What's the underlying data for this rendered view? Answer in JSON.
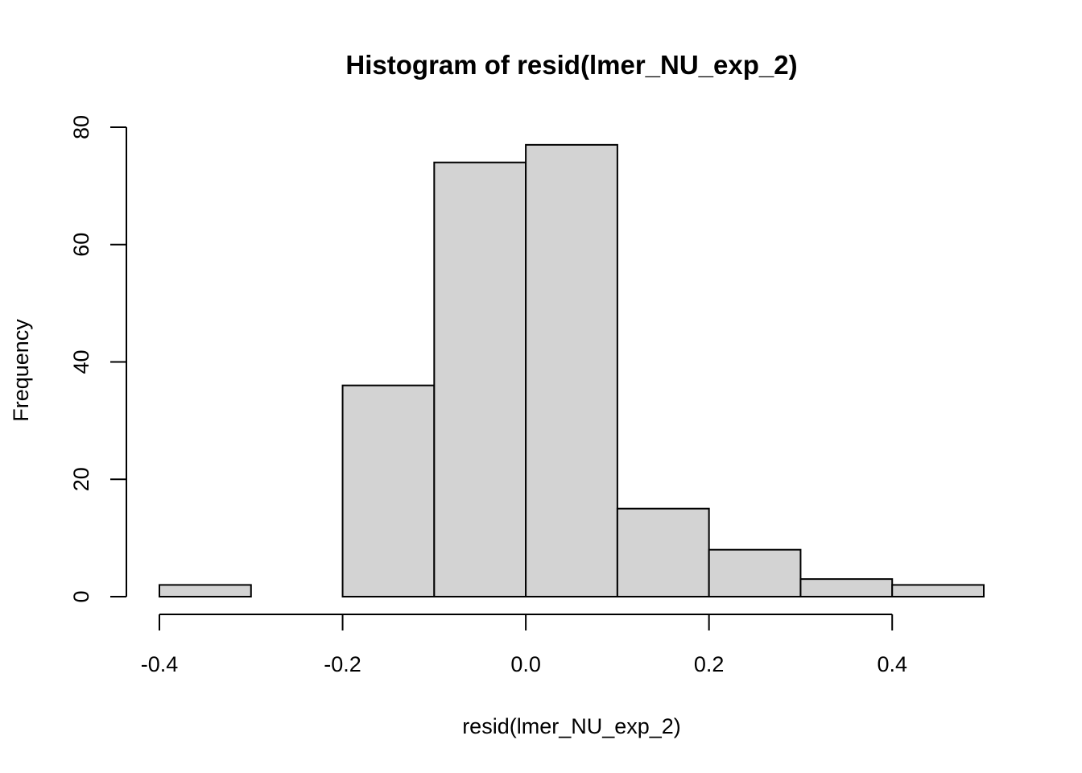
{
  "chart_data": {
    "type": "bar",
    "subtype": "histogram",
    "title": "Histogram of resid(lmer_NU_exp_2)",
    "xlabel": "resid(lmer_NU_exp_2)",
    "ylabel": "Frequency",
    "bins": [
      {
        "x0": -0.4,
        "x1": -0.3,
        "count": 2
      },
      {
        "x0": -0.3,
        "x1": -0.2,
        "count": 0
      },
      {
        "x0": -0.2,
        "x1": -0.1,
        "count": 36
      },
      {
        "x0": -0.1,
        "x1": 0.0,
        "count": 74
      },
      {
        "x0": 0.0,
        "x1": 0.1,
        "count": 77
      },
      {
        "x0": 0.1,
        "x1": 0.2,
        "count": 15
      },
      {
        "x0": 0.2,
        "x1": 0.3,
        "count": 8
      },
      {
        "x0": 0.3,
        "x1": 0.4,
        "count": 3
      },
      {
        "x0": 0.4,
        "x1": 0.5,
        "count": 2
      }
    ],
    "xticks": [
      -0.4,
      -0.2,
      0.0,
      0.2,
      0.4
    ],
    "xtick_labels": [
      "-0.4",
      "-0.2",
      "0.0",
      "0.2",
      "0.4"
    ],
    "yticks": [
      0,
      20,
      40,
      60,
      80
    ],
    "ytick_labels": [
      "0",
      "20",
      "40",
      "60",
      "80"
    ],
    "xlim": [
      -0.4,
      0.5
    ],
    "ylim": [
      0,
      80
    ],
    "grid": false,
    "bar_fill": "#d3d3d3",
    "bar_stroke": "#000000"
  }
}
